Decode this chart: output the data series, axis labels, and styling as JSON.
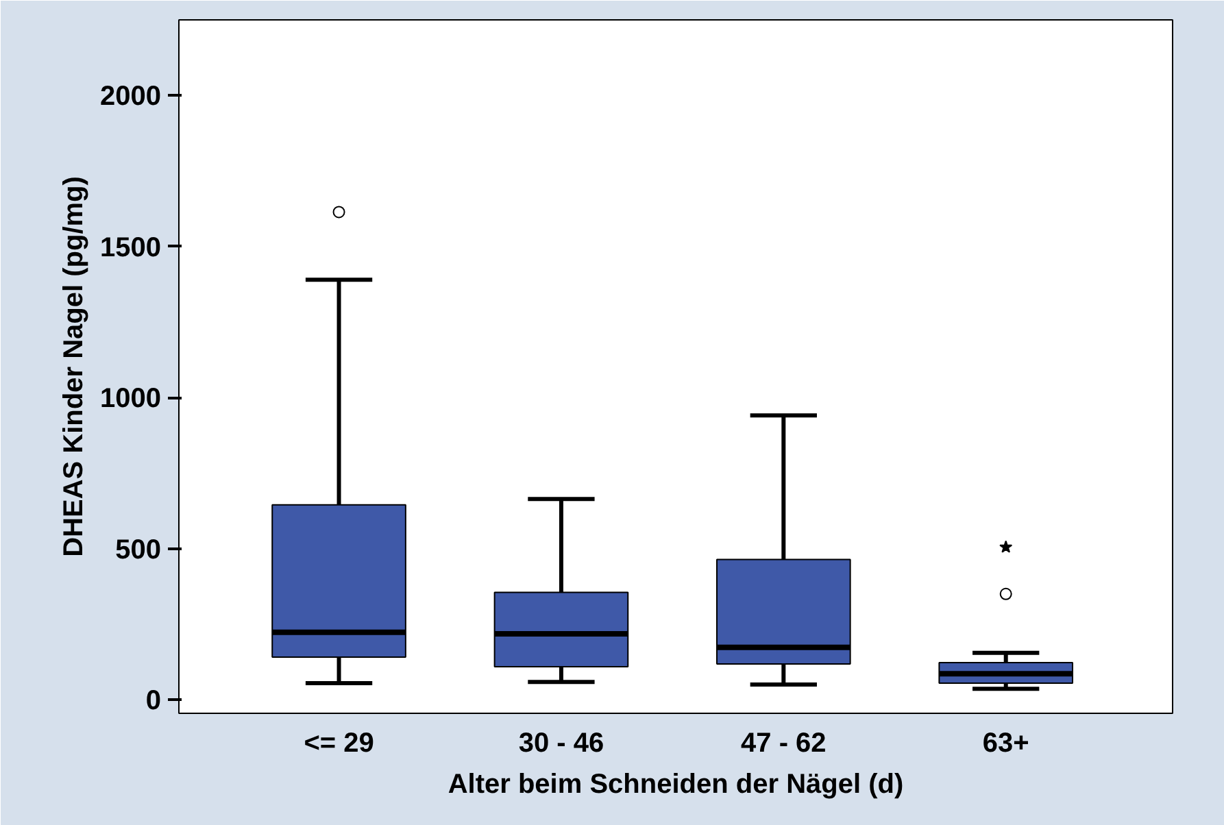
{
  "chart_data": {
    "type": "box",
    "xlabel": "Alter beim Schneiden der Nägel (d)",
    "ylabel": "DHEAS Kinder Nagel (pg/mg)",
    "categories": [
      "<= 29",
      "30 - 46",
      "47 - 62",
      "63+"
    ],
    "color": "#3f59a8",
    "boxes": [
      {
        "low": 55,
        "q1": 141,
        "median": 223,
        "q3": 645,
        "high": 1390,
        "outliers": [
          1614
        ]
      },
      {
        "low": 59,
        "q1": 109,
        "median": 218,
        "q3": 355,
        "high": 664
      },
      {
        "low": 50,
        "q1": 118,
        "median": 173,
        "q3": 464,
        "high": 941
      },
      {
        "low": 36,
        "q1": 55,
        "median": 86,
        "q3": 123,
        "high": 155,
        "outliers": [
          350
        ]
      }
    ],
    "series": [
      {
        "type": "scatter",
        "marker": "star",
        "color": "#000000",
        "x": [
          "63+"
        ],
        "values": [
          505
        ]
      }
    ],
    "ylim": [
      -45,
      2250
    ],
    "yticks": [
      0,
      500,
      1000,
      1500,
      2000
    ],
    "grid": false
  }
}
